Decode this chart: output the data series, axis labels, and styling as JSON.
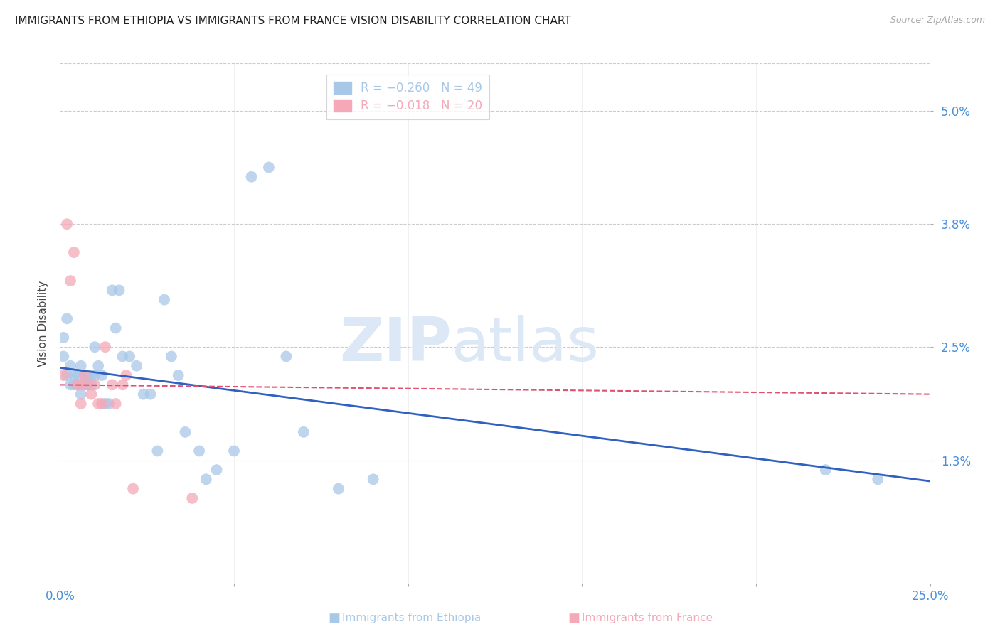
{
  "title": "IMMIGRANTS FROM ETHIOPIA VS IMMIGRANTS FROM FRANCE VISION DISABILITY CORRELATION CHART",
  "source": "Source: ZipAtlas.com",
  "ylabel": "Vision Disability",
  "xlim": [
    0.0,
    0.25
  ],
  "ylim": [
    0.0,
    0.055
  ],
  "yticks": [
    0.013,
    0.025,
    0.038,
    0.05
  ],
  "ytick_labels": [
    "1.3%",
    "2.5%",
    "3.8%",
    "5.0%"
  ],
  "xticks": [
    0.0,
    0.05,
    0.1,
    0.15,
    0.2,
    0.25
  ],
  "xtick_labels": [
    "0.0%",
    "",
    "",
    "",
    "",
    "25.0%"
  ],
  "legend_entries": [
    {
      "label": "R = −0.260   N = 49",
      "color": "#a8c8e8"
    },
    {
      "label": "R = −0.018   N = 20",
      "color": "#f4a8b8"
    }
  ],
  "ethiopia_scatter_x": [
    0.001,
    0.001,
    0.002,
    0.002,
    0.003,
    0.003,
    0.004,
    0.004,
    0.005,
    0.005,
    0.006,
    0.006,
    0.007,
    0.007,
    0.008,
    0.008,
    0.009,
    0.009,
    0.01,
    0.01,
    0.011,
    0.012,
    0.013,
    0.014,
    0.015,
    0.016,
    0.017,
    0.018,
    0.02,
    0.022,
    0.024,
    0.026,
    0.028,
    0.03,
    0.032,
    0.034,
    0.036,
    0.04,
    0.042,
    0.045,
    0.05,
    0.055,
    0.06,
    0.065,
    0.07,
    0.08,
    0.09,
    0.22,
    0.235
  ],
  "ethiopia_scatter_y": [
    0.024,
    0.026,
    0.022,
    0.028,
    0.023,
    0.021,
    0.022,
    0.021,
    0.022,
    0.021,
    0.023,
    0.02,
    0.022,
    0.021,
    0.022,
    0.021,
    0.022,
    0.021,
    0.022,
    0.025,
    0.023,
    0.022,
    0.019,
    0.019,
    0.031,
    0.027,
    0.031,
    0.024,
    0.024,
    0.023,
    0.02,
    0.02,
    0.014,
    0.03,
    0.024,
    0.022,
    0.016,
    0.014,
    0.011,
    0.012,
    0.014,
    0.043,
    0.044,
    0.024,
    0.016,
    0.01,
    0.011,
    0.012,
    0.011
  ],
  "france_scatter_x": [
    0.001,
    0.002,
    0.003,
    0.004,
    0.005,
    0.006,
    0.006,
    0.007,
    0.008,
    0.009,
    0.01,
    0.011,
    0.012,
    0.013,
    0.015,
    0.016,
    0.018,
    0.019,
    0.021,
    0.038
  ],
  "france_scatter_y": [
    0.022,
    0.038,
    0.032,
    0.035,
    0.021,
    0.021,
    0.019,
    0.022,
    0.021,
    0.02,
    0.021,
    0.019,
    0.019,
    0.025,
    0.021,
    0.019,
    0.021,
    0.022,
    0.01,
    0.009
  ],
  "ethiopia_line_x": [
    0.0,
    0.25
  ],
  "ethiopia_line_y": [
    0.0228,
    0.0108
  ],
  "france_line_x": [
    0.0,
    0.25
  ],
  "france_line_y": [
    0.021,
    0.02
  ],
  "scatter_color_ethiopia": "#a8c8e8",
  "scatter_color_france": "#f4a8b8",
  "line_color_ethiopia": "#3060c0",
  "line_color_france": "#e05070",
  "background_color": "#ffffff",
  "grid_color": "#cccccc",
  "title_fontsize": 11,
  "tick_label_color": "#4a90d9",
  "watermark_zip": "ZIP",
  "watermark_atlas": "atlas",
  "watermark_color": "#dce8f5"
}
